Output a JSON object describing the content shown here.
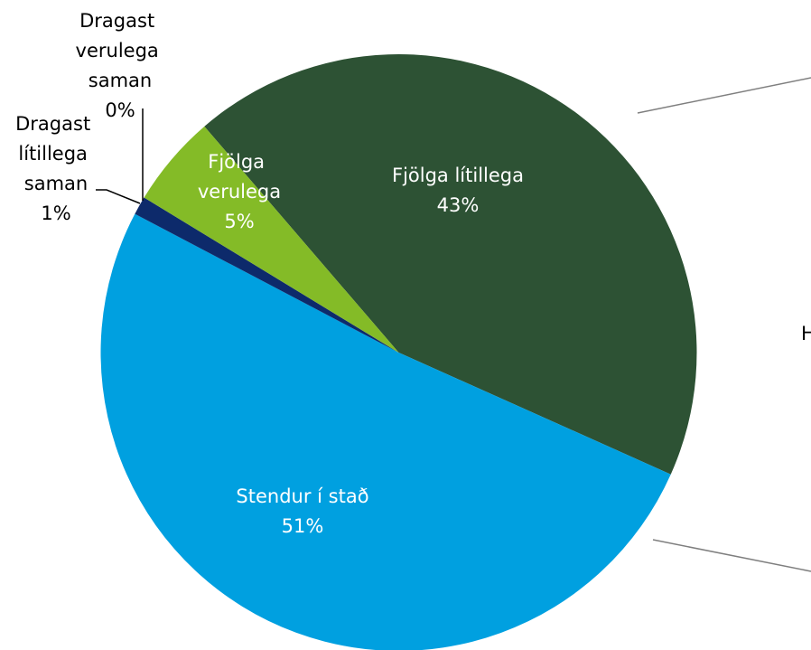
{
  "chart_data": {
    "type": "pie",
    "categories": [
      "Fjölga lítillega",
      "Stendur í stað",
      "Dragast lítillega saman",
      "Dragast verulega saman",
      "Fjölga verulega"
    ],
    "values": [
      43,
      51,
      1,
      0,
      5
    ],
    "value_labels": [
      "43%",
      "51%",
      "1%",
      "0%",
      "5%"
    ],
    "colors": [
      "#2d5234",
      "#00a0e0",
      "#0d2a6b",
      "#7f7f7f",
      "#84bb27"
    ],
    "side_text": "H"
  }
}
